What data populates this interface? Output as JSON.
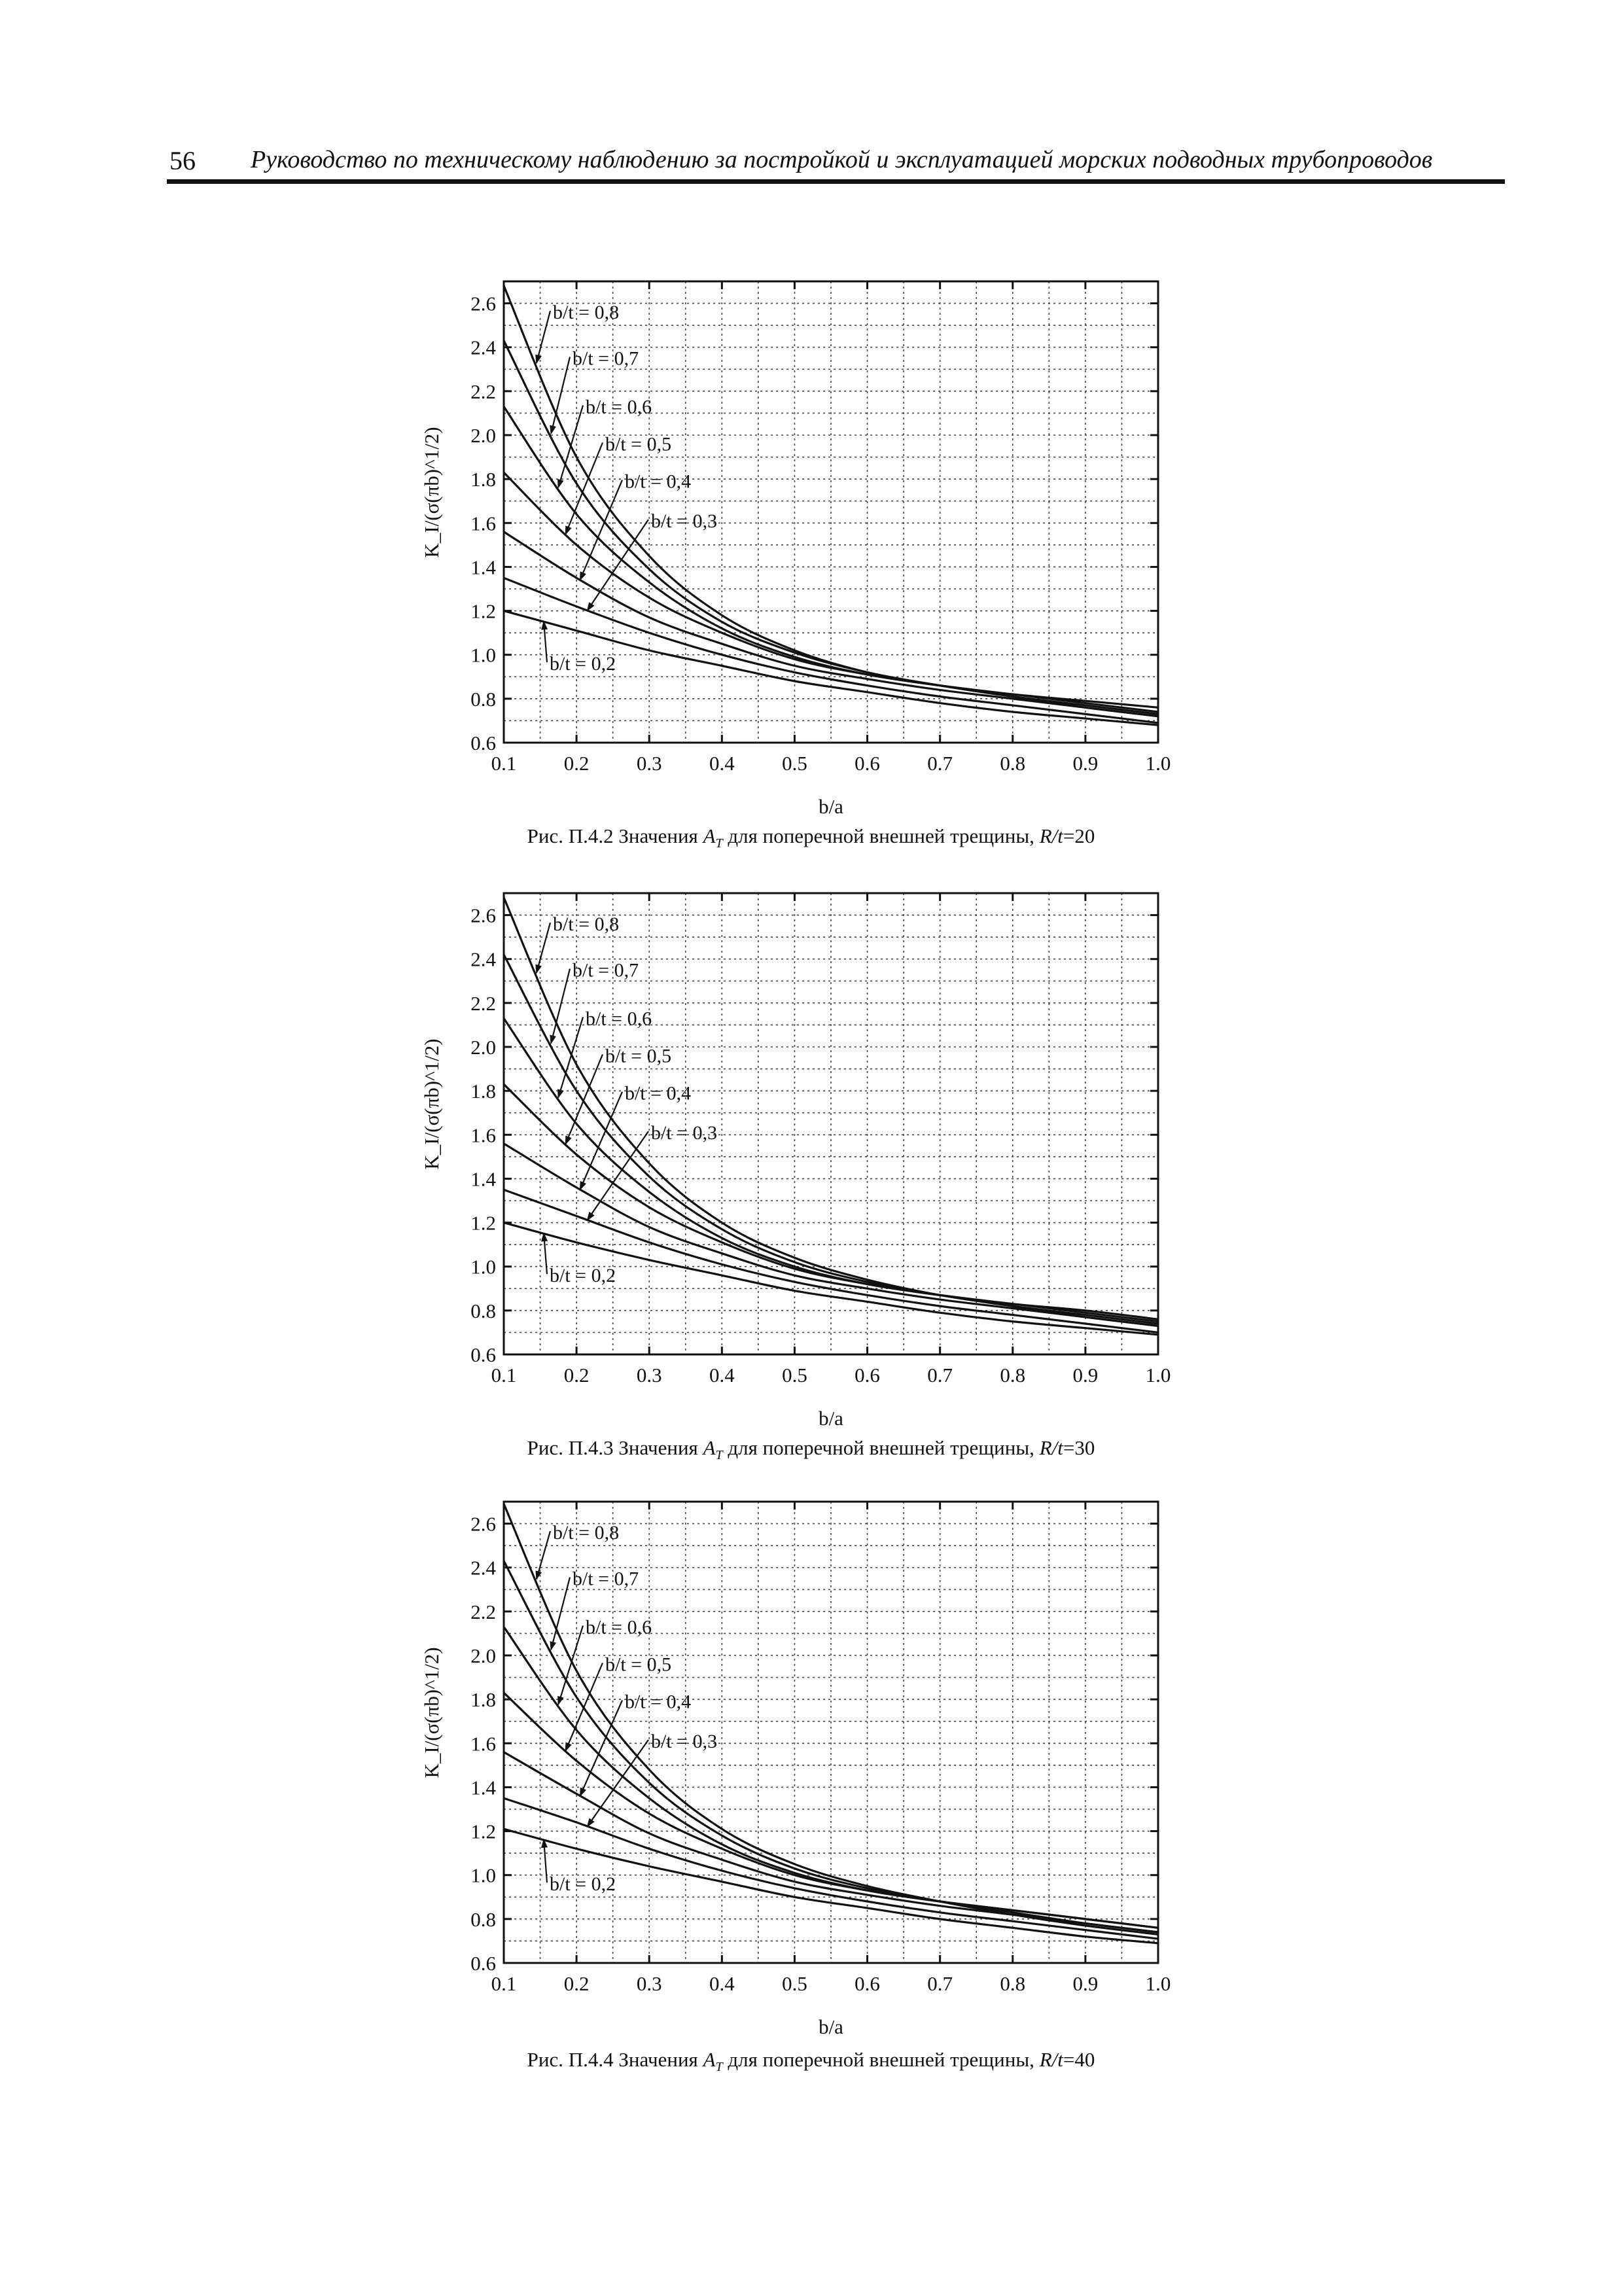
{
  "header": {
    "page_number": "56",
    "title": "Руководство по техническому наблюдению за постройкой и эксплуатацией морских подводных трубопроводов"
  },
  "figures": [
    {
      "caption": {
        "prefix": "Рис. П.4.2 Значения ",
        "symbol": "A",
        "subscript": "T",
        "middle": " для поперечной внешней трещины, ",
        "ratio_symbol": "R/t",
        "ratio_value": "=20"
      }
    },
    {
      "caption": {
        "prefix": "Рис. П.4.3 Значения ",
        "symbol": "A",
        "subscript": "T",
        "middle": " для поперечной внешней трещины, ",
        "ratio_symbol": "R/t",
        "ratio_value": "=30"
      }
    },
    {
      "caption": {
        "prefix": "Рис. П.4.4 Значения ",
        "symbol": "A",
        "subscript": "T",
        "middle": " для поперечной внешней трещины, ",
        "ratio_symbol": "R/t",
        "ratio_value": "=40"
      }
    }
  ],
  "chart_data": [
    {
      "type": "line",
      "xlabel": "b/a",
      "ylabel": "K_I/(σ(πb)^1/2)",
      "xlim": [
        0.1,
        1.0
      ],
      "ylim": [
        0.6,
        2.7
      ],
      "x_ticks": [
        "0.1",
        "0.2",
        "0.3",
        "0.4",
        "0.5",
        "0.6",
        "0.7",
        "0.8",
        "0.9",
        "1.0"
      ],
      "y_ticks": [
        "0.6",
        "0.8",
        "1.0",
        "1.2",
        "1.4",
        "1.6",
        "1.8",
        "2.0",
        "2.2",
        "2.4",
        "2.6"
      ],
      "grid": true,
      "x": [
        0.1,
        0.2,
        0.3,
        0.4,
        0.5,
        0.6,
        0.7,
        0.8,
        0.9,
        1.0
      ],
      "series": [
        {
          "name": "b/t = 0,8",
          "values": [
            2.68,
            1.9,
            1.45,
            1.18,
            1.02,
            0.92,
            0.86,
            0.81,
            0.76,
            0.72
          ]
        },
        {
          "name": "b/t = 0,7",
          "values": [
            2.43,
            1.78,
            1.39,
            1.15,
            1.01,
            0.92,
            0.86,
            0.81,
            0.77,
            0.73
          ]
        },
        {
          "name": "b/t = 0,6",
          "values": [
            2.13,
            1.64,
            1.33,
            1.12,
            0.99,
            0.91,
            0.86,
            0.82,
            0.78,
            0.74
          ]
        },
        {
          "name": "b/t = 0,5",
          "values": [
            1.83,
            1.5,
            1.26,
            1.1,
            0.98,
            0.91,
            0.86,
            0.82,
            0.79,
            0.76
          ]
        },
        {
          "name": "b/t = 0,4",
          "values": [
            1.56,
            1.35,
            1.17,
            1.05,
            0.95,
            0.89,
            0.84,
            0.8,
            0.76,
            0.72
          ]
        },
        {
          "name": "b/t = 0,3",
          "values": [
            1.35,
            1.22,
            1.1,
            1.0,
            0.92,
            0.86,
            0.81,
            0.77,
            0.73,
            0.69
          ]
        },
        {
          "name": "b/t = 0,2",
          "values": [
            1.2,
            1.11,
            1.02,
            0.95,
            0.88,
            0.83,
            0.78,
            0.74,
            0.71,
            0.68
          ]
        }
      ]
    },
    {
      "type": "line",
      "xlabel": "b/a",
      "ylabel": "K_I/(σ(πb)^1/2)",
      "xlim": [
        0.1,
        1.0
      ],
      "ylim": [
        0.6,
        2.7
      ],
      "x_ticks": [
        "0.1",
        "0.2",
        "0.3",
        "0.4",
        "0.5",
        "0.6",
        "0.7",
        "0.8",
        "0.9",
        "1.0"
      ],
      "y_ticks": [
        "0.6",
        "0.8",
        "1.0",
        "1.2",
        "1.4",
        "1.6",
        "1.8",
        "2.0",
        "2.2",
        "2.4",
        "2.6"
      ],
      "grid": true,
      "x": [
        0.1,
        0.2,
        0.3,
        0.4,
        0.5,
        0.6,
        0.7,
        0.8,
        0.9,
        1.0
      ],
      "series": [
        {
          "name": "b/t = 0,8",
          "values": [
            2.68,
            1.92,
            1.47,
            1.2,
            1.04,
            0.94,
            0.87,
            0.82,
            0.77,
            0.73
          ]
        },
        {
          "name": "b/t = 0,7",
          "values": [
            2.42,
            1.8,
            1.41,
            1.17,
            1.02,
            0.93,
            0.87,
            0.82,
            0.78,
            0.74
          ]
        },
        {
          "name": "b/t = 0,6",
          "values": [
            2.13,
            1.65,
            1.34,
            1.13,
            1.0,
            0.92,
            0.87,
            0.83,
            0.79,
            0.75
          ]
        },
        {
          "name": "b/t = 0,5",
          "values": [
            1.83,
            1.51,
            1.27,
            1.11,
            0.99,
            0.92,
            0.87,
            0.83,
            0.8,
            0.76
          ]
        },
        {
          "name": "b/t = 0,4",
          "values": [
            1.56,
            1.36,
            1.18,
            1.06,
            0.96,
            0.9,
            0.85,
            0.81,
            0.77,
            0.73
          ]
        },
        {
          "name": "b/t = 0,3",
          "values": [
            1.35,
            1.23,
            1.11,
            1.01,
            0.93,
            0.87,
            0.82,
            0.78,
            0.74,
            0.7
          ]
        },
        {
          "name": "b/t = 0,2",
          "values": [
            1.2,
            1.11,
            1.03,
            0.96,
            0.89,
            0.84,
            0.79,
            0.75,
            0.72,
            0.69
          ]
        }
      ]
    },
    {
      "type": "line",
      "xlabel": "b/a",
      "ylabel": "K_I/(σ(πb)^1/2)",
      "xlim": [
        0.1,
        1.0
      ],
      "ylim": [
        0.6,
        2.7
      ],
      "x_ticks": [
        "0.1",
        "0.2",
        "0.3",
        "0.4",
        "0.5",
        "0.6",
        "0.7",
        "0.8",
        "0.9",
        "1.0"
      ],
      "y_ticks": [
        "0.6",
        "0.8",
        "1.0",
        "1.2",
        "1.4",
        "1.6",
        "1.8",
        "2.0",
        "2.2",
        "2.4",
        "2.6"
      ],
      "grid": true,
      "x": [
        0.1,
        0.2,
        0.3,
        0.4,
        0.5,
        0.6,
        0.7,
        0.8,
        0.9,
        1.0
      ],
      "series": [
        {
          "name": "b/t = 0,8",
          "values": [
            2.69,
            1.93,
            1.48,
            1.21,
            1.05,
            0.95,
            0.88,
            0.82,
            0.77,
            0.73
          ]
        },
        {
          "name": "b/t = 0,7",
          "values": [
            2.43,
            1.81,
            1.42,
            1.18,
            1.03,
            0.94,
            0.88,
            0.83,
            0.78,
            0.74
          ]
        },
        {
          "name": "b/t = 0,6",
          "values": [
            2.13,
            1.66,
            1.35,
            1.14,
            1.01,
            0.93,
            0.88,
            0.84,
            0.8,
            0.76
          ]
        },
        {
          "name": "b/t = 0,5",
          "values": [
            1.83,
            1.52,
            1.28,
            1.12,
            1.0,
            0.93,
            0.88,
            0.84,
            0.8,
            0.76
          ]
        },
        {
          "name": "b/t = 0,4",
          "values": [
            1.56,
            1.37,
            1.19,
            1.07,
            0.97,
            0.91,
            0.86,
            0.82,
            0.78,
            0.74
          ]
        },
        {
          "name": "b/t = 0,3",
          "values": [
            1.35,
            1.24,
            1.12,
            1.02,
            0.94,
            0.88,
            0.83,
            0.79,
            0.75,
            0.71
          ]
        },
        {
          "name": "b/t = 0,2",
          "values": [
            1.21,
            1.12,
            1.04,
            0.97,
            0.9,
            0.85,
            0.8,
            0.76,
            0.72,
            0.69
          ]
        }
      ]
    }
  ]
}
